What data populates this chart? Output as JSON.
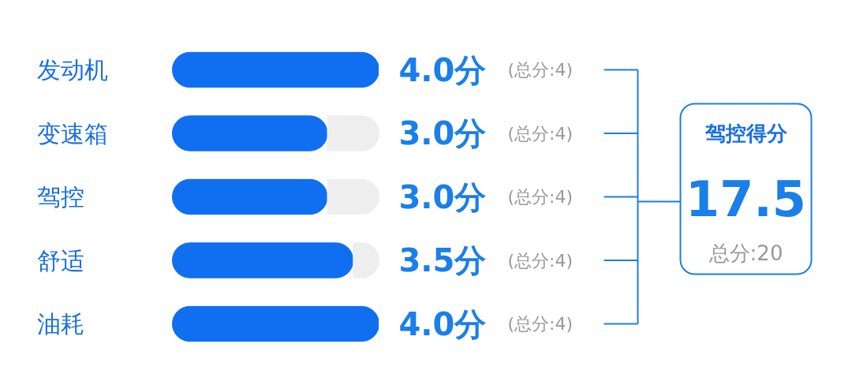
{
  "chart_data": {
    "type": "bar",
    "orientation": "horizontal",
    "stacked": true,
    "categories": [
      "发动机",
      "变速箱",
      "驾控",
      "舒适",
      "油耗"
    ],
    "series": [
      {
        "color": "#0f6ff0",
        "values": [
          4.0,
          3.0,
          3.0,
          3.5,
          4.0
        ],
        "value_labels": [
          "4.0分",
          "3.0分",
          "3.0分",
          "3.5分",
          "4.0分"
        ]
      },
      {
        "color": "#eeeeee",
        "values": [
          0,
          1,
          1,
          0.5,
          0
        ]
      }
    ],
    "xlim": [
      0,
      4
    ],
    "tick_labels": "y",
    "annotations": [
      "(总分:4)",
      "(总分:4)",
      "(总分:4)",
      "(总分:4)",
      "(总分:4)",
      "驾控得分",
      "17.5",
      "总分:20"
    ]
  }
}
